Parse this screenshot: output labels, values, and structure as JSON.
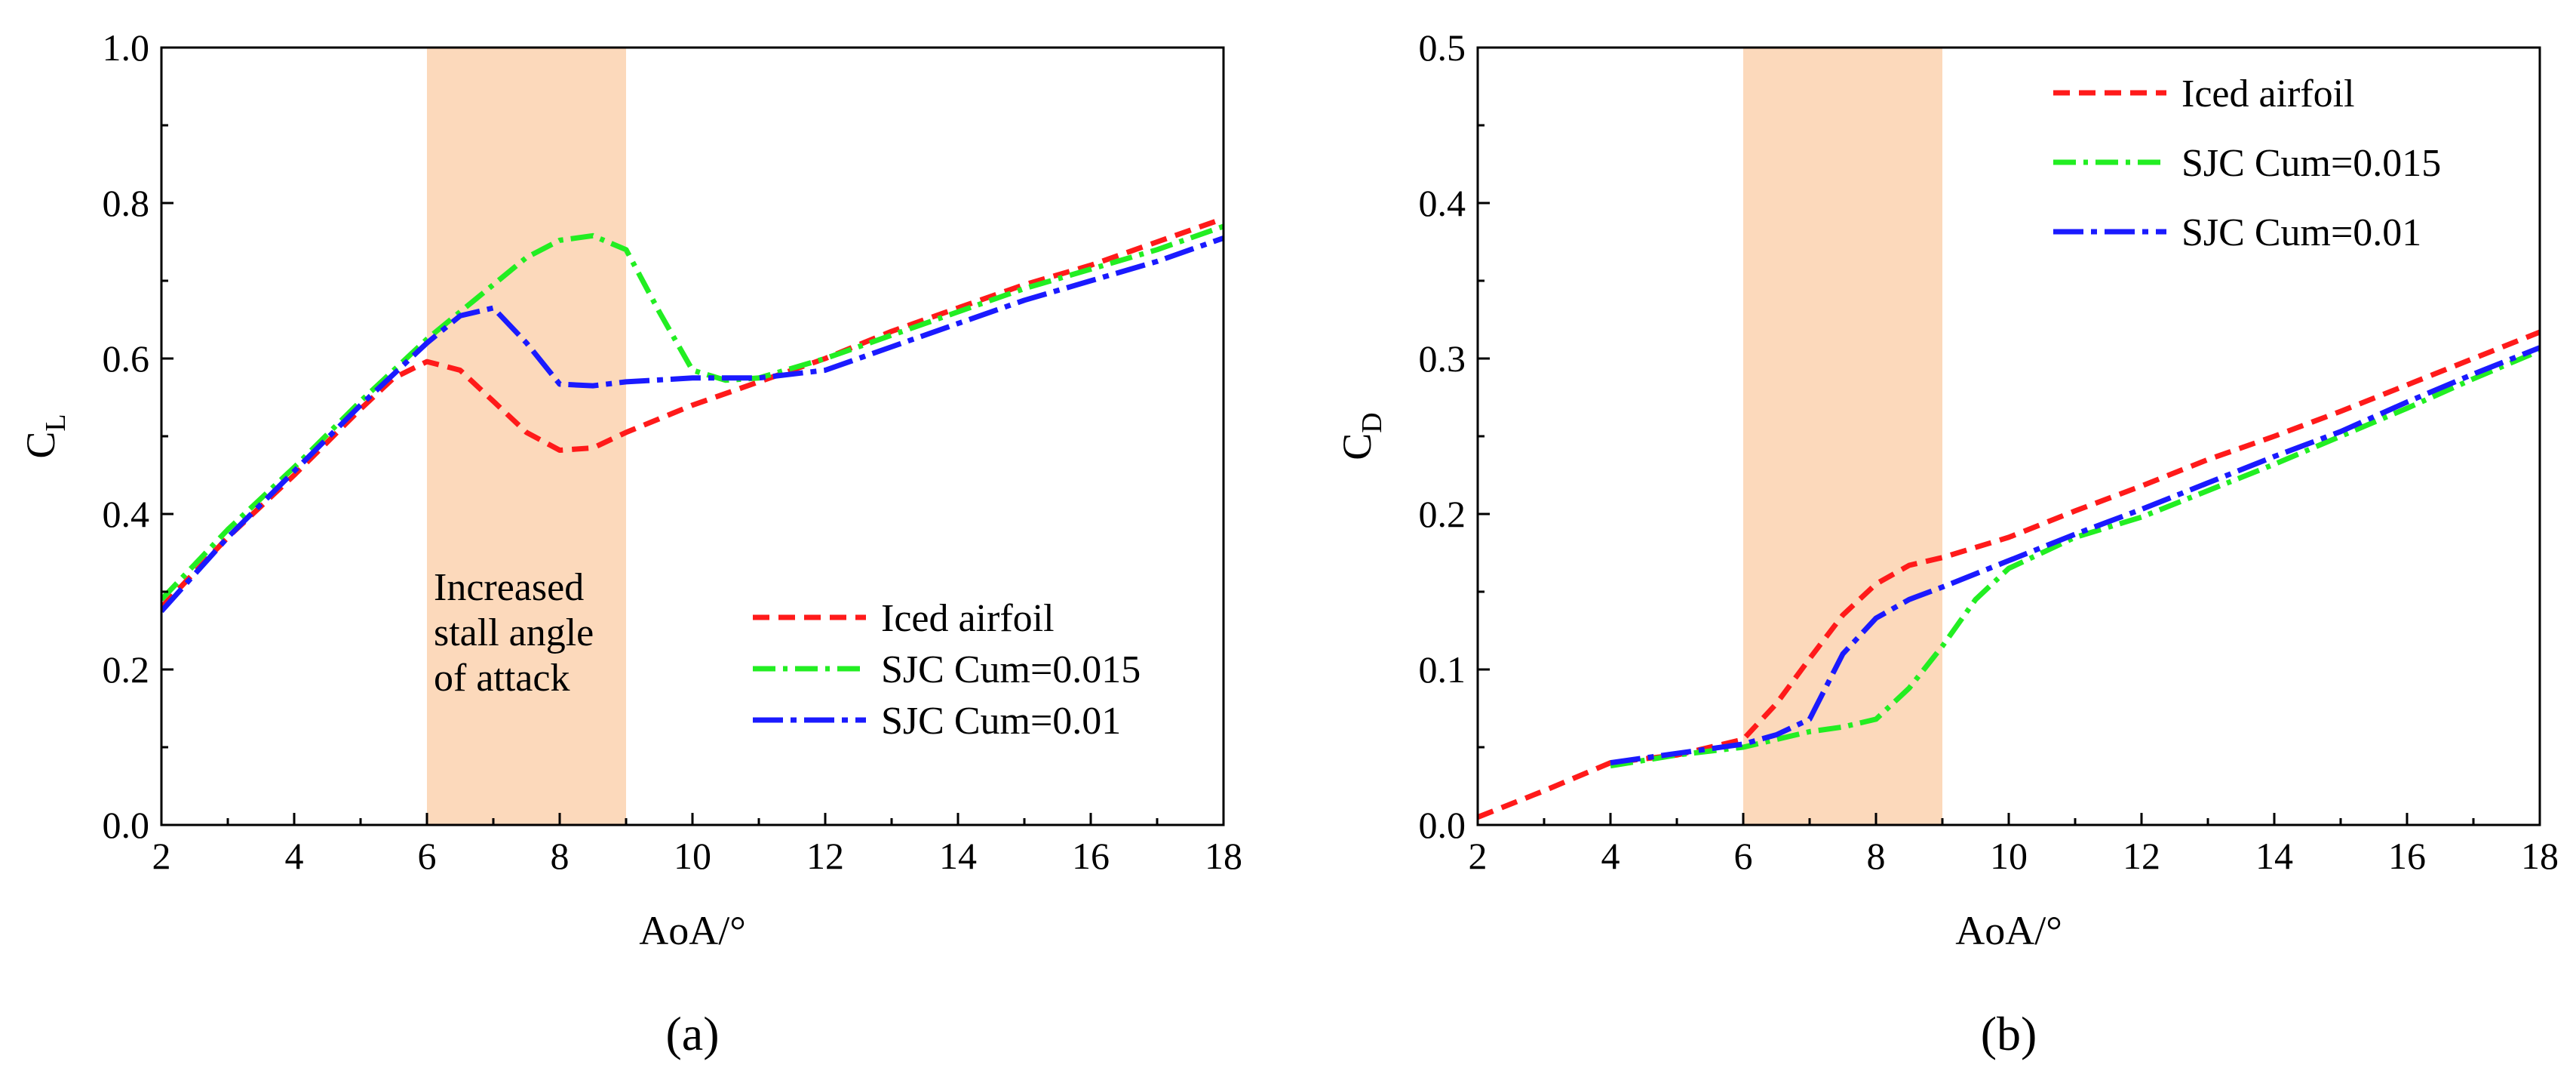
{
  "chart_data": [
    {
      "type": "line",
      "panel_label": "(a)",
      "xlabel": "AoA/°",
      "ylabel": "C",
      "ylabel_sub": "L",
      "xlim": [
        2,
        18
      ],
      "ylim": [
        0.0,
        1.0
      ],
      "xticks": [
        2,
        4,
        6,
        8,
        10,
        12,
        14,
        16,
        18
      ],
      "xtick_labels": [
        "2",
        "4",
        "6",
        "8",
        "10",
        "12",
        "14",
        "16",
        "18"
      ],
      "yticks": [
        0.0,
        0.2,
        0.4,
        0.6,
        0.8,
        1.0
      ],
      "ytick_labels": [
        "0.0",
        "0.2",
        "0.4",
        "0.6",
        "0.8",
        "1.0"
      ],
      "shaded_region": {
        "x0": 6,
        "x1": 9,
        "color": "#fcd9bb"
      },
      "annotation": [
        "Increased",
        "stall angle",
        "of attack"
      ],
      "legend_position": "bottom-right",
      "series": [
        {
          "name": "Iced airfoil",
          "color": "#ff1a1a",
          "dash": "dashed",
          "x": [
            2,
            3,
            4,
            5,
            5.5,
            6,
            6.5,
            7,
            7.5,
            8,
            8.5,
            9,
            10,
            11,
            12,
            13,
            14,
            15,
            16,
            17,
            18
          ],
          "y": [
            0.28,
            0.37,
            0.45,
            0.535,
            0.575,
            0.596,
            0.585,
            0.545,
            0.505,
            0.482,
            0.485,
            0.505,
            0.54,
            0.57,
            0.6,
            0.635,
            0.665,
            0.695,
            0.72,
            0.75,
            0.78
          ]
        },
        {
          "name": "SJC Cum=0.015",
          "color": "#22ee22",
          "dash": "dashdot",
          "x": [
            2,
            3,
            4,
            5,
            6,
            6.5,
            7,
            7.5,
            8,
            8.5,
            9,
            9.5,
            10,
            10.5,
            11,
            12,
            13,
            14,
            15,
            16,
            17,
            18
          ],
          "y": [
            0.29,
            0.38,
            0.46,
            0.545,
            0.625,
            0.66,
            0.695,
            0.73,
            0.752,
            0.758,
            0.74,
            0.66,
            0.585,
            0.572,
            0.575,
            0.6,
            0.63,
            0.66,
            0.69,
            0.715,
            0.74,
            0.77
          ]
        },
        {
          "name": "SJC Cum=0.01",
          "color": "#1a1aff",
          "dash": "dashdot2",
          "x": [
            2,
            3,
            4,
            5,
            6,
            6.5,
            7,
            7.5,
            8,
            8.5,
            9,
            10,
            11,
            12,
            13,
            14,
            15,
            16,
            17,
            18
          ],
          "y": [
            0.275,
            0.37,
            0.455,
            0.54,
            0.62,
            0.655,
            0.665,
            0.62,
            0.567,
            0.565,
            0.57,
            0.575,
            0.575,
            0.585,
            0.615,
            0.645,
            0.675,
            0.7,
            0.725,
            0.755
          ]
        }
      ]
    },
    {
      "type": "line",
      "panel_label": "(b)",
      "xlabel": "AoA/°",
      "ylabel": "C",
      "ylabel_sub": "D",
      "xlim": [
        2,
        18
      ],
      "ylim": [
        0.0,
        0.5
      ],
      "xticks": [
        2,
        4,
        6,
        8,
        10,
        12,
        14,
        16,
        18
      ],
      "xtick_labels": [
        "2",
        "4",
        "6",
        "8",
        "10",
        "12",
        "14",
        "16",
        "18"
      ],
      "yticks": [
        0.0,
        0.1,
        0.2,
        0.3,
        0.4,
        0.5
      ],
      "ytick_labels": [
        "0.0",
        "0.1",
        "0.2",
        "0.3",
        "0.4",
        "0.5"
      ],
      "shaded_region": {
        "x0": 6,
        "x1": 9,
        "color": "#fcd9bb"
      },
      "legend_position": "top-right",
      "series": [
        {
          "name": "Iced airfoil",
          "color": "#ff1a1a",
          "dash": "dashed",
          "x": [
            2,
            3,
            4,
            5,
            6,
            6.5,
            7,
            7.5,
            8,
            8.5,
            9,
            10,
            11,
            12,
            13,
            14,
            15,
            16,
            17,
            18
          ],
          "y": [
            0.005,
            0.022,
            0.04,
            0.045,
            0.055,
            0.078,
            0.107,
            0.135,
            0.155,
            0.167,
            0.172,
            0.185,
            0.202,
            0.218,
            0.235,
            0.25,
            0.266,
            0.283,
            0.3,
            0.317
          ]
        },
        {
          "name": "SJC Cum=0.015",
          "color": "#22ee22",
          "dash": "dashdot",
          "x": [
            4,
            5,
            6,
            6.5,
            7,
            7.5,
            8,
            8.5,
            9,
            9.5,
            10,
            11,
            12,
            13,
            14,
            15,
            16,
            17,
            18
          ],
          "y": [
            0.038,
            0.045,
            0.05,
            0.055,
            0.06,
            0.063,
            0.068,
            0.088,
            0.115,
            0.145,
            0.165,
            0.185,
            0.198,
            0.215,
            0.232,
            0.25,
            0.268,
            0.287,
            0.305
          ]
        },
        {
          "name": "SJC Cum=0.01",
          "color": "#1a1aff",
          "dash": "dashdot2",
          "x": [
            4,
            5,
            6,
            6.5,
            7,
            7.5,
            8,
            8.5,
            9,
            10,
            11,
            12,
            13,
            14,
            15,
            16,
            17,
            18
          ],
          "y": [
            0.04,
            0.046,
            0.052,
            0.058,
            0.068,
            0.11,
            0.133,
            0.145,
            0.153,
            0.17,
            0.187,
            0.203,
            0.22,
            0.237,
            0.253,
            0.272,
            0.29,
            0.307
          ]
        }
      ]
    }
  ]
}
